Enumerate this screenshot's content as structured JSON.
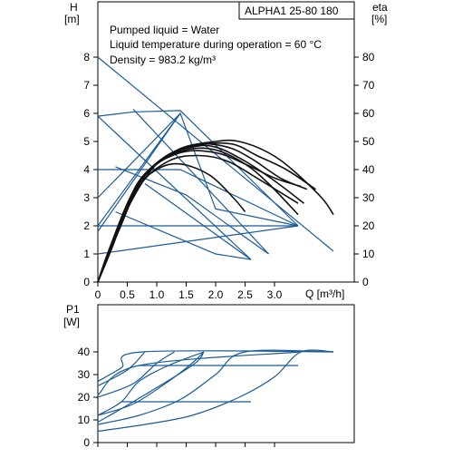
{
  "chart_data": [
    {
      "type": "line",
      "model": "ALPHA1 25-80 180",
      "notes": [
        "Pumped liquid = Water",
        "Liquid temperature during operation = 60 °C",
        "Density = 983.2 kg/m³"
      ],
      "ylabel": {
        "name": "H",
        "unit": "[m]"
      },
      "y2label": {
        "name": "eta",
        "unit": "[%]"
      },
      "xlabel": "Q [m³/h]",
      "xlim": [
        0,
        4
      ],
      "xticks": [
        0,
        0.5,
        1.0,
        1.5,
        2.0,
        2.5,
        3.0
      ],
      "xtick_labels": [
        "0",
        "0.5",
        "1.0",
        "1.5",
        "2.0",
        "2.5",
        "3.0"
      ],
      "ylim": [
        0,
        8.5
      ],
      "yticks": [
        0,
        1,
        2,
        3,
        4,
        5,
        6,
        7,
        8
      ],
      "y2lim": [
        0,
        85
      ],
      "y2ticks": [
        0,
        10,
        20,
        30,
        40,
        50,
        60,
        70,
        80
      ],
      "grid": false,
      "colors": {
        "head": "#1a5a99",
        "eta": "#111111"
      },
      "head_series": [
        {
          "values": [
            [
              0,
              8
            ],
            [
              4,
              1.1
            ]
          ]
        },
        {
          "values": [
            [
              0,
              5.9
            ],
            [
              0.6,
              6.05
            ],
            [
              1.4,
              6.1
            ],
            [
              3.4,
              2.0
            ]
          ]
        },
        {
          "values": [
            [
              0,
              4.0
            ],
            [
              1.4,
              4.0
            ],
            [
              3.4,
              2.0
            ]
          ]
        },
        {
          "values": [
            [
              0,
              2.0
            ],
            [
              3.4,
              2.0
            ]
          ]
        },
        {
          "values": [
            [
              0,
              1.0
            ],
            [
              3.4,
              2.0
            ]
          ]
        },
        {
          "values": [
            [
              0,
              1.8
            ],
            [
              1.4,
              6.0
            ]
          ]
        },
        {
          "values": [
            [
              0,
              3.0
            ],
            [
              1.4,
              6.0
            ]
          ]
        },
        {
          "values": [
            [
              0.3,
              4.1
            ],
            [
              1.5,
              3.1
            ],
            [
              2.9,
              1.0
            ]
          ]
        },
        {
          "values": [
            [
              0.6,
              6.15
            ],
            [
              2.9,
              1.0
            ]
          ]
        },
        {
          "values": [
            [
              0.8,
              3.5
            ],
            [
              2.6,
              0.8
            ]
          ]
        },
        {
          "values": [
            [
              0,
              5.9
            ],
            [
              2.6,
              0.8
            ]
          ]
        },
        {
          "values": [
            [
              0.3,
              2.5
            ],
            [
              2.0,
              1.0
            ],
            [
              2.6,
              0.8
            ]
          ]
        },
        {
          "values": [
            [
              0,
              2.0
            ],
            [
              1.4,
              6.0
            ],
            [
              2.0,
              2.6
            ],
            [
              3.4,
              2.0
            ]
          ]
        }
      ],
      "eta_series": [
        {
          "values": [
            [
              0,
              0
            ],
            [
              0.2,
              10
            ],
            [
              0.55,
              28
            ],
            [
              1.0,
              42
            ],
            [
              1.5,
              47
            ],
            [
              2.0,
              47
            ],
            [
              2.5,
              42
            ],
            [
              2.9,
              35
            ],
            [
              3.4,
              24
            ]
          ]
        },
        {
          "values": [
            [
              0,
              0
            ],
            [
              0.2,
              12
            ],
            [
              0.6,
              32
            ],
            [
              1.1,
              44
            ],
            [
              1.6,
              48
            ],
            [
              2.0,
              48
            ],
            [
              2.5,
              43
            ],
            [
              3.0,
              36
            ],
            [
              3.5,
              28
            ]
          ]
        },
        {
          "values": [
            [
              0,
              0
            ],
            [
              0.25,
              14
            ],
            [
              0.65,
              34
            ],
            [
              1.2,
              45
            ],
            [
              1.7,
              49
            ],
            [
              2.2,
              48
            ],
            [
              2.6,
              44
            ],
            [
              3.1,
              37
            ],
            [
              3.55,
              33
            ]
          ]
        },
        {
          "values": [
            [
              0,
              0
            ],
            [
              0.3,
              16
            ],
            [
              0.7,
              36
            ],
            [
              1.3,
              46
            ],
            [
              1.8,
              49
            ],
            [
              2.3,
              49
            ],
            [
              2.7,
              45
            ],
            [
              3.2,
              40
            ],
            [
              3.7,
              33
            ]
          ]
        },
        {
          "values": [
            [
              0,
              0
            ],
            [
              0.3,
              17
            ],
            [
              0.75,
              37
            ],
            [
              1.35,
              47
            ],
            [
              2.0,
              50
            ],
            [
              2.4,
              50
            ],
            [
              2.9,
              46
            ],
            [
              3.3,
              40
            ],
            [
              3.8,
              30
            ],
            [
              4.0,
              24
            ]
          ]
        },
        {
          "values": [
            [
              0,
              0
            ],
            [
              0.35,
              18
            ],
            [
              0.8,
              38
            ],
            [
              1.4,
              46
            ],
            [
              2.0,
              46
            ],
            [
              2.5,
              42
            ],
            [
              3.0,
              37
            ],
            [
              3.45,
              34
            ]
          ]
        },
        {
          "values": [
            [
              0,
              0
            ],
            [
              0.2,
              12
            ],
            [
              0.6,
              32
            ],
            [
              1.0,
              40
            ],
            [
              1.4,
              42
            ],
            [
              1.9,
              38
            ],
            [
              2.3,
              30
            ],
            [
              2.5,
              25
            ]
          ]
        },
        {
          "values": [
            [
              0,
              0
            ],
            [
              0.25,
              14
            ],
            [
              0.7,
              34
            ],
            [
              1.2,
              43
            ],
            [
              1.7,
              45
            ],
            [
              2.2,
              43
            ],
            [
              2.7,
              37
            ],
            [
              3.4,
              28
            ]
          ]
        }
      ]
    },
    {
      "type": "line",
      "ylabel": {
        "name": "P1",
        "unit": "[W]"
      },
      "xlim": [
        0,
        4
      ],
      "ylim": [
        0,
        52
      ],
      "yticks": [
        0,
        10,
        20,
        30,
        40
      ],
      "grid": false,
      "colors": {
        "power": "#1a5a99"
      },
      "power_series": [
        {
          "values": [
            [
              0,
              5
            ],
            [
              0.8,
              8
            ],
            [
              1.6,
              12
            ],
            [
              2.4,
              20
            ],
            [
              3.0,
              29
            ],
            [
              3.45,
              40
            ],
            [
              4.0,
              40
            ]
          ]
        },
        {
          "values": [
            [
              0,
              8
            ],
            [
              0.7,
              12
            ],
            [
              1.4,
              19
            ],
            [
              2.0,
              30
            ],
            [
              2.5,
              40
            ],
            [
              4.0,
              40
            ]
          ]
        },
        {
          "values": [
            [
              0,
              12
            ],
            [
              0.6,
              17
            ],
            [
              1.2,
              27
            ],
            [
              1.6,
              35
            ],
            [
              1.8,
              40
            ]
          ]
        },
        {
          "values": [
            [
              0,
              20
            ],
            [
              0.6,
              26
            ],
            [
              1.0,
              35
            ],
            [
              1.3,
              40
            ]
          ]
        },
        {
          "values": [
            [
              0,
              25
            ],
            [
              0.5,
              32
            ],
            [
              0.8,
              40
            ]
          ]
        },
        {
          "values": [
            [
              0,
              27
            ],
            [
              0.4,
              33
            ],
            [
              0.75,
              40
            ],
            [
              4.0,
              40
            ]
          ]
        },
        {
          "values": [
            [
              0.7,
              34
            ],
            [
              3.4,
              34
            ]
          ]
        },
        {
          "values": [
            [
              0.4,
              18
            ],
            [
              2.6,
              18
            ]
          ]
        },
        {
          "values": [
            [
              0,
              21
            ],
            [
              0.7,
              34
            ],
            [
              3.45,
              40
            ]
          ]
        },
        {
          "values": [
            [
              0,
              12
            ],
            [
              0.4,
              18
            ],
            [
              0.7,
              27
            ],
            [
              1.2,
              34
            ],
            [
              1.8,
              40
            ]
          ]
        },
        {
          "values": [
            [
              0,
              9
            ],
            [
              0.6,
              18
            ],
            [
              1.6,
              34
            ],
            [
              1.8,
              40
            ]
          ]
        }
      ]
    }
  ]
}
